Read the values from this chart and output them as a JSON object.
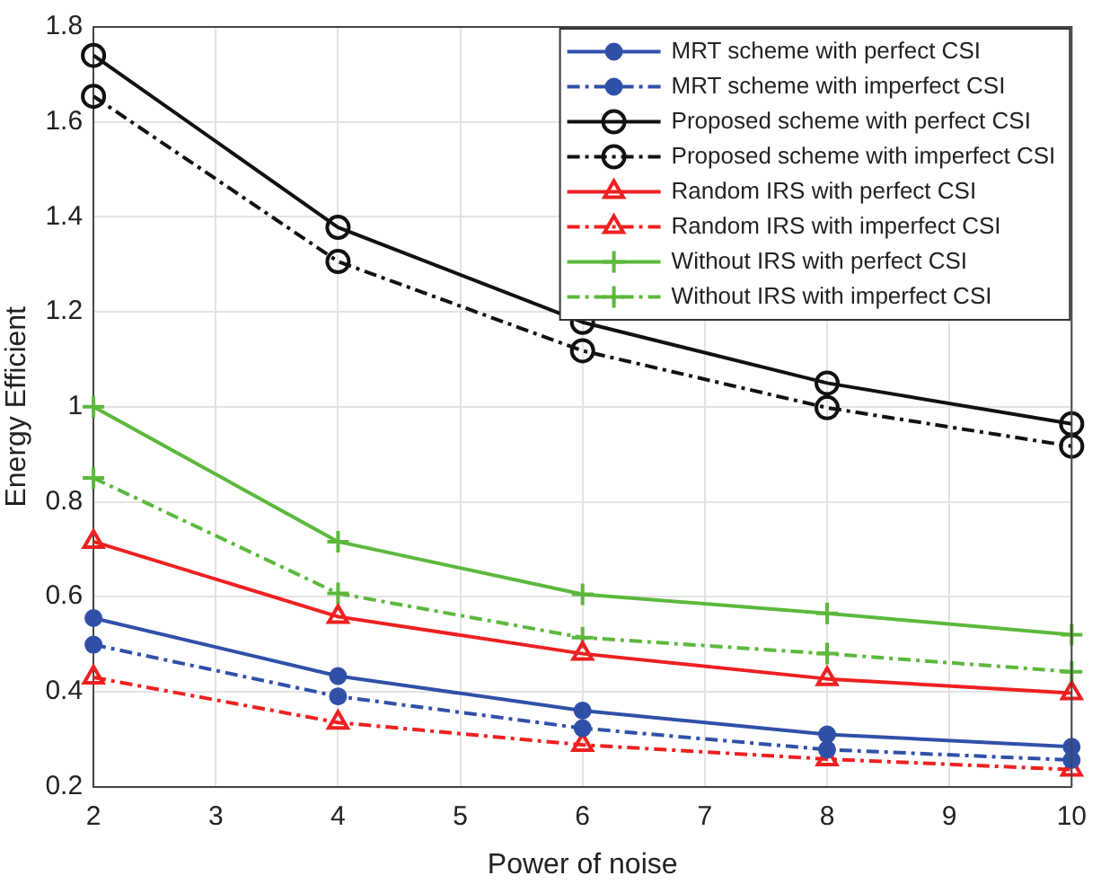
{
  "chart_data": {
    "type": "line",
    "xlabel": "Power of noise",
    "ylabel": "Energy Efficient",
    "x": [
      2,
      4,
      6,
      8,
      10
    ],
    "xlim": [
      2,
      10
    ],
    "xticks": [
      2,
      3,
      4,
      5,
      6,
      7,
      8,
      9,
      10
    ],
    "ylim": [
      0.2,
      1.8
    ],
    "yticks": [
      0.2,
      0.4,
      0.6,
      0.8,
      1,
      1.2,
      1.4,
      1.6,
      1.8
    ],
    "grid": true,
    "legend": "top right",
    "series": [
      {
        "name": "MRT scheme with perfect CSI",
        "color": "#3050a8",
        "marker": "circle",
        "line_style": "solid",
        "values": [
          0.555,
          0.433,
          0.36,
          0.31,
          0.284
        ]
      },
      {
        "name": "MRT scheme with imperfect CSI",
        "color": "#3050a8",
        "marker": "circle",
        "line_style": "dashed",
        "values": [
          0.499,
          0.39,
          0.323,
          0.278,
          0.256
        ]
      },
      {
        "name": "Proposed scheme with perfect CSI",
        "color": "#111111",
        "marker": "circle",
        "line_style": "solid",
        "values": [
          1.74,
          1.378,
          1.178,
          1.05,
          0.964
        ]
      },
      {
        "name": "Proposed scheme with imperfect CSI",
        "color": "#111111",
        "marker": "circle",
        "line_style": "dashed",
        "values": [
          1.654,
          1.306,
          1.118,
          0.998,
          0.917
        ]
      },
      {
        "name": "Random IRS with perfect CSI",
        "color": "#ee2020",
        "marker": "triangle",
        "line_style": "solid",
        "values": [
          0.716,
          0.558,
          0.48,
          0.427,
          0.397
        ]
      },
      {
        "name": "Random IRS with imperfect CSI",
        "color": "#ee2020",
        "marker": "triangle",
        "line_style": "dashed",
        "values": [
          0.43,
          0.335,
          0.288,
          0.258,
          0.236
        ]
      },
      {
        "name": "Without IRS with perfect CSI",
        "color": "#5cb83c",
        "marker": "cross",
        "line_style": "solid",
        "values": [
          1.0,
          0.716,
          0.605,
          0.565,
          0.52
        ]
      },
      {
        "name": "Without IRS with imperfect CSI",
        "color": "#5cb83c",
        "marker": "cross",
        "line_style": "dashed",
        "values": [
          0.85,
          0.607,
          0.514,
          0.48,
          0.442
        ]
      }
    ]
  }
}
